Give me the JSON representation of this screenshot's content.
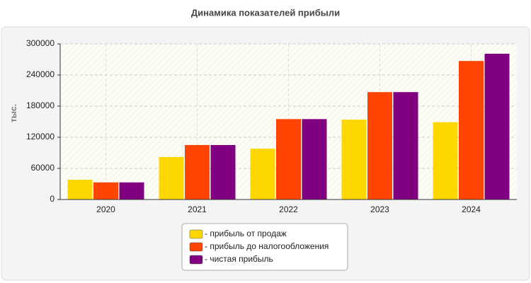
{
  "chart_data": {
    "type": "bar",
    "title": "Динамика показателей прибыли",
    "y_label": "тыс.",
    "categories": [
      "2020",
      "2021",
      "2022",
      "2023",
      "2024"
    ],
    "series": [
      {
        "name": "- прибыль от продаж",
        "color": "#ffd700",
        "values": [
          38000,
          82000,
          98000,
          154000,
          149000
        ]
      },
      {
        "name": "- прибыль до налогообложения",
        "color": "#ff4500",
        "values": [
          33000,
          105000,
          155000,
          207000,
          267000
        ]
      },
      {
        "name": "- чистая прибыль",
        "color": "#800080",
        "values": [
          33000,
          105000,
          155000,
          207000,
          281000
        ]
      }
    ],
    "ylim": [
      0,
      300000
    ],
    "yticks": [
      0,
      60000,
      120000,
      180000,
      240000,
      300000
    ],
    "grid": true,
    "legend": "bottom"
  }
}
